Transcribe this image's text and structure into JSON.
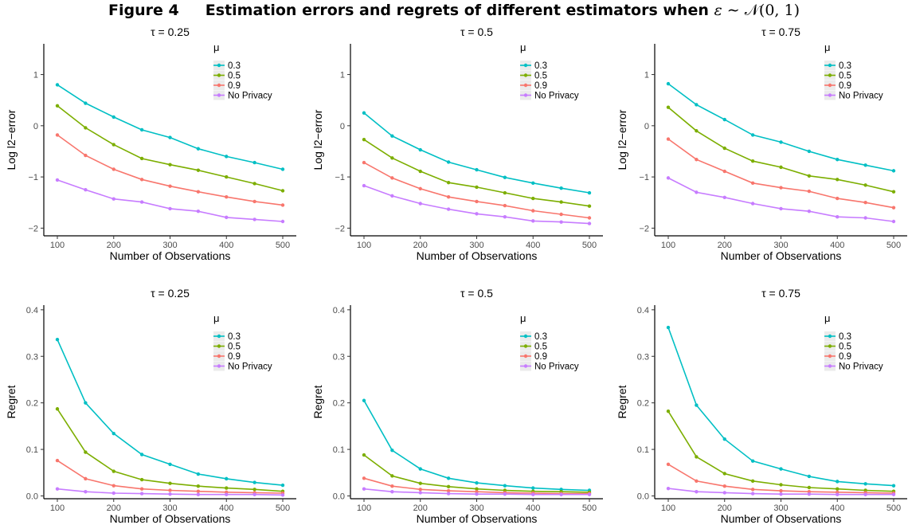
{
  "figure": {
    "label": "Figure 4",
    "title_text": "Estimation errors and regrets of different estimators when",
    "title_math_var": "ε",
    "title_math_op": "∼",
    "title_math_dist": "𝒩(0, 1)"
  },
  "legend": {
    "title": "μ",
    "entries": [
      "0.3",
      "0.5",
      "0.9",
      "No Privacy"
    ]
  },
  "series_colors": [
    "#00BFC4",
    "#7CAE00",
    "#F8766D",
    "#C77CFF"
  ],
  "chart_data": [
    {
      "type": "line",
      "title": "τ = 0.25",
      "xlabel": "Number of Observations",
      "ylabel": "Log l2−error",
      "x": [
        100,
        150,
        200,
        250,
        300,
        350,
        400,
        450,
        500
      ],
      "xlim": [
        100,
        500
      ],
      "xticks": [
        "100",
        "200",
        "300",
        "400",
        "500"
      ],
      "ylim": [
        -2.15,
        1.6
      ],
      "yticks": [
        "−2",
        "−1",
        "0",
        "1"
      ],
      "legend_position": "top-right",
      "series": [
        {
          "name": "0.3",
          "values": [
            0.8,
            0.44,
            0.17,
            -0.08,
            -0.23,
            -0.45,
            -0.6,
            -0.72,
            -0.85
          ]
        },
        {
          "name": "0.5",
          "values": [
            0.39,
            -0.04,
            -0.37,
            -0.64,
            -0.76,
            -0.87,
            -1.0,
            -1.13,
            -1.27
          ]
        },
        {
          "name": "0.9",
          "values": [
            -0.18,
            -0.58,
            -0.85,
            -1.05,
            -1.18,
            -1.29,
            -1.39,
            -1.48,
            -1.55
          ]
        },
        {
          "name": "No Privacy",
          "values": [
            -1.06,
            -1.25,
            -1.43,
            -1.49,
            -1.62,
            -1.67,
            -1.79,
            -1.83,
            -1.87
          ]
        }
      ]
    },
    {
      "type": "line",
      "title": "τ = 0.5",
      "xlabel": "Number of Observations",
      "ylabel": "Log l2−error",
      "x": [
        100,
        150,
        200,
        250,
        300,
        350,
        400,
        450,
        500
      ],
      "xlim": [
        100,
        500
      ],
      "xticks": [
        "100",
        "200",
        "300",
        "400",
        "500"
      ],
      "ylim": [
        -2.15,
        1.6
      ],
      "yticks": [
        "−2",
        "−1",
        "0",
        "1"
      ],
      "legend_position": "top-right",
      "series": [
        {
          "name": "0.3",
          "values": [
            0.25,
            -0.2,
            -0.47,
            -0.71,
            -0.86,
            -1.01,
            -1.12,
            -1.22,
            -1.31
          ]
        },
        {
          "name": "0.5",
          "values": [
            -0.27,
            -0.63,
            -0.89,
            -1.11,
            -1.2,
            -1.31,
            -1.42,
            -1.49,
            -1.57
          ]
        },
        {
          "name": "0.9",
          "values": [
            -0.72,
            -1.02,
            -1.23,
            -1.39,
            -1.48,
            -1.56,
            -1.66,
            -1.73,
            -1.8
          ]
        },
        {
          "name": "No Privacy",
          "values": [
            -1.17,
            -1.37,
            -1.52,
            -1.63,
            -1.72,
            -1.78,
            -1.86,
            -1.88,
            -1.91
          ]
        }
      ]
    },
    {
      "type": "line",
      "title": "τ = 0.75",
      "xlabel": "Number of Observations",
      "ylabel": "Log l2−error",
      "x": [
        100,
        150,
        200,
        250,
        300,
        350,
        400,
        450,
        500
      ],
      "xlim": [
        100,
        500
      ],
      "xticks": [
        "100",
        "200",
        "300",
        "400",
        "500"
      ],
      "ylim": [
        -2.15,
        1.6
      ],
      "yticks": [
        "−2",
        "−1",
        "0",
        "1"
      ],
      "legend_position": "top-right",
      "series": [
        {
          "name": "0.3",
          "values": [
            0.82,
            0.41,
            0.12,
            -0.18,
            -0.32,
            -0.5,
            -0.66,
            -0.77,
            -0.88
          ]
        },
        {
          "name": "0.5",
          "values": [
            0.36,
            -0.1,
            -0.44,
            -0.69,
            -0.81,
            -0.98,
            -1.05,
            -1.16,
            -1.29
          ]
        },
        {
          "name": "0.9",
          "values": [
            -0.26,
            -0.66,
            -0.89,
            -1.12,
            -1.21,
            -1.28,
            -1.42,
            -1.5,
            -1.6
          ]
        },
        {
          "name": "No Privacy",
          "values": [
            -1.02,
            -1.3,
            -1.4,
            -1.52,
            -1.62,
            -1.67,
            -1.78,
            -1.8,
            -1.87
          ]
        }
      ]
    },
    {
      "type": "line",
      "title": "τ = 0.25",
      "xlabel": "Number of Observations",
      "ylabel": "Regret",
      "x": [
        100,
        150,
        200,
        250,
        300,
        350,
        400,
        450,
        500
      ],
      "xlim": [
        100,
        500
      ],
      "xticks": [
        "100",
        "200",
        "300",
        "400",
        "500"
      ],
      "ylim": [
        -0.006,
        0.41
      ],
      "yticks": [
        "0.0",
        "0.1",
        "0.2",
        "0.3",
        "0.4"
      ],
      "legend_position": "top-right",
      "series": [
        {
          "name": "0.3",
          "values": [
            0.336,
            0.2,
            0.134,
            0.089,
            0.068,
            0.047,
            0.037,
            0.029,
            0.023
          ]
        },
        {
          "name": "0.5",
          "values": [
            0.187,
            0.094,
            0.053,
            0.035,
            0.027,
            0.021,
            0.017,
            0.014,
            0.01
          ]
        },
        {
          "name": "0.9",
          "values": [
            0.076,
            0.037,
            0.022,
            0.015,
            0.012,
            0.01,
            0.008,
            0.007,
            0.006
          ]
        },
        {
          "name": "No Privacy",
          "values": [
            0.015,
            0.009,
            0.006,
            0.005,
            0.004,
            0.003,
            0.003,
            0.003,
            0.002
          ]
        }
      ]
    },
    {
      "type": "line",
      "title": "τ = 0.5",
      "xlabel": "Number of Observations",
      "ylabel": "Regret",
      "x": [
        100,
        150,
        200,
        250,
        300,
        350,
        400,
        450,
        500
      ],
      "xlim": [
        100,
        500
      ],
      "xticks": [
        "100",
        "200",
        "300",
        "400",
        "500"
      ],
      "ylim": [
        -0.006,
        0.41
      ],
      "yticks": [
        "0.0",
        "0.1",
        "0.2",
        "0.3",
        "0.4"
      ],
      "legend_position": "top-right",
      "series": [
        {
          "name": "0.3",
          "values": [
            0.205,
            0.098,
            0.058,
            0.038,
            0.028,
            0.022,
            0.017,
            0.014,
            0.012
          ]
        },
        {
          "name": "0.5",
          "values": [
            0.088,
            0.043,
            0.027,
            0.02,
            0.015,
            0.012,
            0.01,
            0.009,
            0.008
          ]
        },
        {
          "name": "0.9",
          "values": [
            0.038,
            0.021,
            0.014,
            0.011,
            0.009,
            0.007,
            0.006,
            0.005,
            0.005
          ]
        },
        {
          "name": "No Privacy",
          "values": [
            0.015,
            0.009,
            0.007,
            0.005,
            0.004,
            0.004,
            0.003,
            0.003,
            0.003
          ]
        }
      ]
    },
    {
      "type": "line",
      "title": "τ = 0.75",
      "xlabel": "Number of Observations",
      "ylabel": "Regret",
      "x": [
        100,
        150,
        200,
        250,
        300,
        350,
        400,
        450,
        500
      ],
      "xlim": [
        100,
        500
      ],
      "xticks": [
        "100",
        "200",
        "300",
        "400",
        "500"
      ],
      "ylim": [
        -0.006,
        0.41
      ],
      "yticks": [
        "0.0",
        "0.1",
        "0.2",
        "0.3",
        "0.4"
      ],
      "legend_position": "top-right",
      "series": [
        {
          "name": "0.3",
          "values": [
            0.362,
            0.195,
            0.122,
            0.075,
            0.058,
            0.042,
            0.031,
            0.026,
            0.022
          ]
        },
        {
          "name": "0.5",
          "values": [
            0.182,
            0.084,
            0.048,
            0.032,
            0.024,
            0.018,
            0.015,
            0.012,
            0.01
          ]
        },
        {
          "name": "0.9",
          "values": [
            0.068,
            0.032,
            0.021,
            0.014,
            0.011,
            0.009,
            0.008,
            0.007,
            0.006
          ]
        },
        {
          "name": "No Privacy",
          "values": [
            0.016,
            0.009,
            0.007,
            0.005,
            0.004,
            0.004,
            0.003,
            0.003,
            0.003
          ]
        }
      ]
    }
  ]
}
